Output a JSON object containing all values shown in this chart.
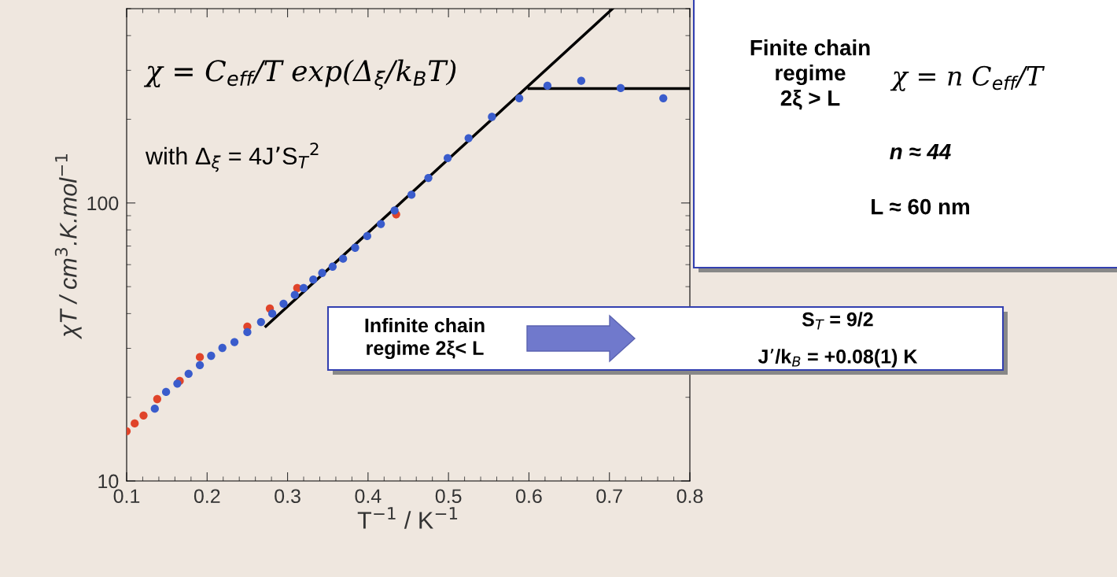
{
  "chart_data": {
    "type": "scatter",
    "xlabel": "T$^{−1}$ / K$^{−1}$",
    "ylabel": "χT / cm$^{3}$.K.mol$^{−1}$",
    "xlim": [
      0.1,
      0.8
    ],
    "xticks": [
      0.1,
      0.2,
      0.3,
      0.4,
      0.5,
      0.6,
      0.7,
      0.8
    ],
    "ylim": [
      10,
      500
    ],
    "yticks": [
      10,
      100
    ],
    "log": "y",
    "grid": false,
    "marker": "circle",
    "series": [
      {
        "color": "#e0442a",
        "x": [
          0.1,
          0.11,
          0.121,
          0.138,
          0.166,
          0.191,
          0.25,
          0.278,
          0.312,
          0.435
        ],
        "values": [
          15.1,
          16.1,
          17.2,
          19.7,
          22.9,
          27.9,
          35.9,
          41.7,
          49.4,
          91
        ]
      },
      {
        "color": "#3a5ccc",
        "x": [
          0.135,
          0.149,
          0.163,
          0.177,
          0.191,
          0.205,
          0.219,
          0.234,
          0.25,
          0.267,
          0.281,
          0.295,
          0.309,
          0.32,
          0.332,
          0.343,
          0.356,
          0.369,
          0.384,
          0.399,
          0.416,
          0.433,
          0.454,
          0.475,
          0.499,
          0.525,
          0.554,
          0.588,
          0.623,
          0.665,
          0.714,
          0.767
        ],
        "values": [
          18.2,
          20.9,
          22.4,
          24.3,
          26.1,
          28.2,
          30.1,
          31.6,
          34.3,
          37.3,
          40,
          43.4,
          46.7,
          49.4,
          53,
          56,
          59,
          63,
          69,
          76,
          84,
          94,
          107,
          123,
          145,
          171,
          204,
          238,
          264,
          275,
          259,
          238
        ]
      },
      {
        "type": "line",
        "marker": "none",
        "color": "#000000",
        "x": [
          0.273,
          0.704
        ],
        "values": [
          36,
          500
        ]
      },
      {
        "type": "line",
        "marker": "none",
        "color": "#000000",
        "x": [
          0.6,
          0.8
        ],
        "values": [
          258,
          258
        ]
      }
    ],
    "annotations": [
      "χ = C$_{eff}$/T exp(Δ$_{ξ}$/k$_{B}$T)",
      "with Δ$_{ξ}$ = 4J’S$_{T}$$^{2}$",
      "Finite chain\nregime\n2ξ > L",
      "χ = n C$_{eff}$/T",
      "n ≈ 44",
      "L ≈ 60 nm",
      "Infinite chain\nregime 2ξ< L",
      "S$_{T}$ = 9/2",
      "J’/k$_{B}$ = +0.08(1) K"
    ]
  }
}
